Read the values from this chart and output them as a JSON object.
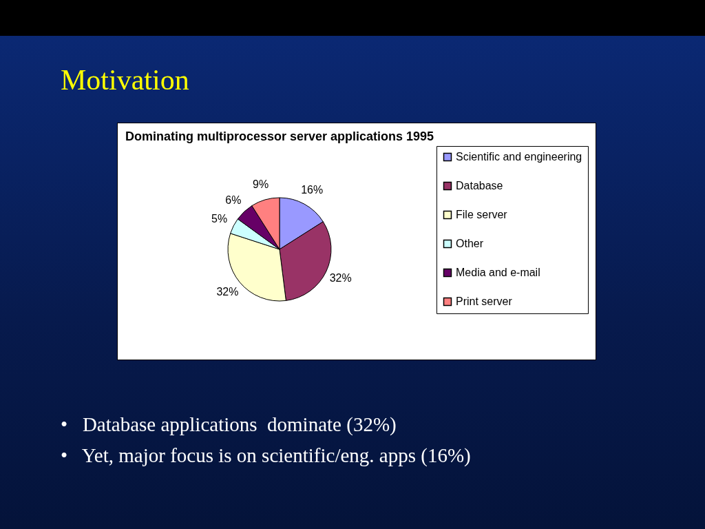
{
  "chart_data": {
    "type": "pie",
    "title": "Motivation",
    "subtitle": "Dominating multiprocessor server applications 1995",
    "categories": [
      "Scientific and engineering",
      "Database",
      "File server",
      "Other",
      "Media and e-mail",
      "Print server"
    ],
    "values": [
      16,
      32,
      32,
      5,
      6,
      9
    ],
    "value_labels": [
      "16%",
      "32%",
      "32%",
      "5%",
      "6%",
      "9%"
    ],
    "colors": [
      "#9999ff",
      "#993366",
      "#ffffcc",
      "#ccffff",
      "#660066",
      "#ff8080"
    ],
    "legend": "right",
    "annotations": [
      "•   Database applications  dominate (32%)",
      "•   Yet, major focus is on scientific/eng. apps (16%)"
    ]
  }
}
